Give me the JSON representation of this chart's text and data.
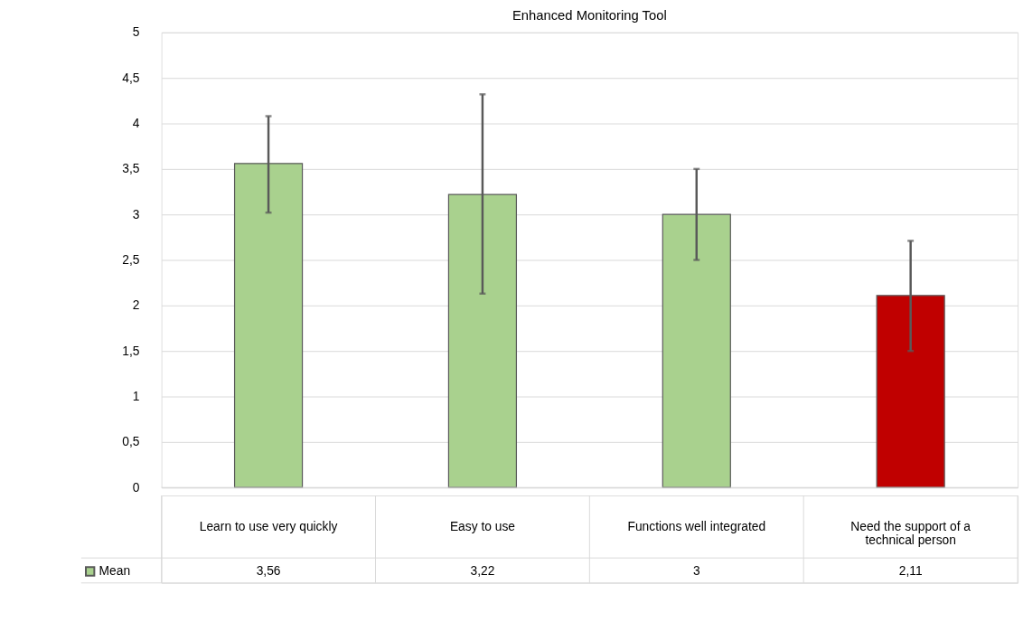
{
  "chart_data": {
    "type": "bar",
    "title": "Enhanced Monitoring Tool",
    "categories": [
      "Learn to use very quickly",
      "Easy to use",
      "Functions well integrated",
      "Need the support of a technical person"
    ],
    "series": [
      {
        "name": "Mean",
        "values": [
          3.56,
          3.22,
          3,
          2.11
        ],
        "value_labels": [
          "3,56",
          "3,22",
          "3",
          "2,11"
        ],
        "errors": [
          [
            3.02,
            4.08
          ],
          [
            2.13,
            4.32
          ],
          [
            2.5,
            3.5
          ],
          [
            1.5,
            2.71
          ]
        ]
      }
    ],
    "colors": [
      "#a9d18e",
      "#a9d18e",
      "#a9d18e",
      "#c00000"
    ],
    "ylim": [
      0,
      5
    ],
    "yticks": [
      0,
      {
        "value": 0.5,
        "label": "0,5"
      },
      1,
      {
        "value": 1.5,
        "label": "1,5"
      },
      2,
      {
        "value": 2.5,
        "label": "2,5"
      },
      3,
      {
        "value": 3.5,
        "label": "3,5"
      },
      4,
      {
        "value": 4.5,
        "label": "4,5"
      },
      5
    ],
    "grid": "y",
    "legend": "bottom"
  }
}
